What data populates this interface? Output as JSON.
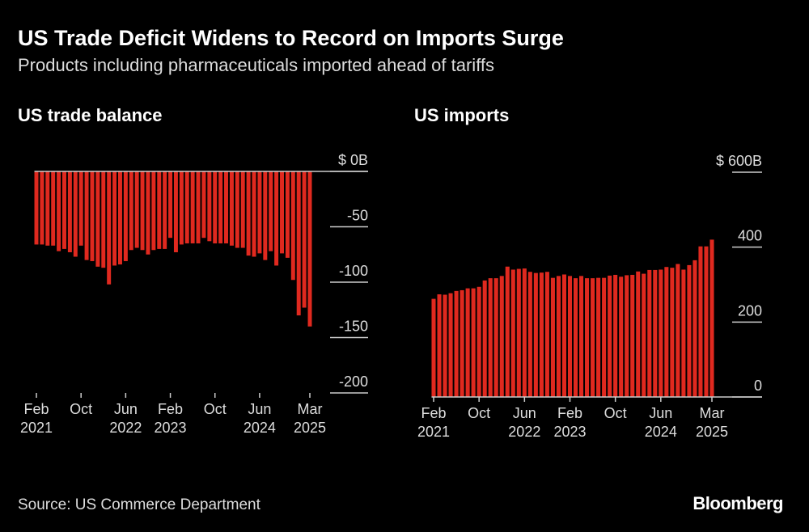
{
  "title": "US Trade Deficit Widens to Record on Imports Surge",
  "subtitle": "Products including pharmaceuticals imported ahead of tariffs",
  "source": "Source: US Commerce Department",
  "logo": "Bloomberg",
  "colors": {
    "bar": "#e0291f",
    "background": "#000000",
    "axis": "#cccccc"
  },
  "chart_data": [
    {
      "type": "bar",
      "title": "US trade balance",
      "unit": "$ billions",
      "x_start": "Feb 2021",
      "x_end": "Mar 2025",
      "frequency": "monthly",
      "ylim": [
        -200,
        0
      ],
      "yticks": [
        {
          "v": 0,
          "label": "$ 0B"
        },
        {
          "v": -50,
          "label": "-50"
        },
        {
          "v": -100,
          "label": "-100"
        },
        {
          "v": -150,
          "label": "-150"
        },
        {
          "v": -200,
          "label": "-200"
        }
      ],
      "xticks": [
        {
          "i": 0,
          "label": [
            "Feb",
            "2021"
          ]
        },
        {
          "i": 8,
          "label": [
            "Oct",
            ""
          ]
        },
        {
          "i": 16,
          "label": [
            "Jun",
            "2022"
          ]
        },
        {
          "i": 24,
          "label": [
            "Feb",
            "2023"
          ]
        },
        {
          "i": 32,
          "label": [
            "Oct",
            ""
          ]
        },
        {
          "i": 40,
          "label": [
            "Jun",
            "2024"
          ]
        },
        {
          "i": 49,
          "label": [
            "Mar",
            "2025"
          ]
        }
      ],
      "values": [
        -66,
        -66,
        -67,
        -67,
        -72,
        -70,
        -73,
        -77,
        -67,
        -80,
        -81,
        -86,
        -87,
        -102,
        -85,
        -84,
        -81,
        -71,
        -69,
        -71,
        -75,
        -71,
        -70,
        -70,
        -60,
        -73,
        -66,
        -65,
        -65,
        -65,
        -60,
        -63,
        -65,
        -65,
        -65,
        -67,
        -69,
        -69,
        -76,
        -77,
        -74,
        -80,
        -72,
        -85,
        -74,
        -78,
        -98,
        -130,
        -123,
        -140
      ]
    },
    {
      "type": "bar",
      "title": "US imports",
      "unit": "$ billions",
      "x_start": "Feb 2021",
      "x_end": "Mar 2025",
      "frequency": "monthly",
      "ylim": [
        0,
        600
      ],
      "yticks": [
        {
          "v": 600,
          "label": "$ 600B"
        },
        {
          "v": 400,
          "label": "400"
        },
        {
          "v": 200,
          "label": "200"
        },
        {
          "v": 0,
          "label": "0"
        }
      ],
      "xticks": [
        {
          "i": 0,
          "label": [
            "Feb",
            "2021"
          ]
        },
        {
          "i": 8,
          "label": [
            "Oct",
            ""
          ]
        },
        {
          "i": 16,
          "label": [
            "Jun",
            "2022"
          ]
        },
        {
          "i": 24,
          "label": [
            "Feb",
            "2023"
          ]
        },
        {
          "i": 32,
          "label": [
            "Oct",
            ""
          ]
        },
        {
          "i": 40,
          "label": [
            "Jun",
            "2024"
          ]
        },
        {
          "i": 49,
          "label": [
            "Mar",
            "2025"
          ]
        }
      ],
      "values": [
        262,
        274,
        273,
        277,
        283,
        285,
        290,
        290,
        294,
        311,
        317,
        317,
        323,
        348,
        340,
        342,
        343,
        334,
        331,
        332,
        334,
        318,
        323,
        327,
        323,
        317,
        323,
        317,
        317,
        318,
        318,
        324,
        326,
        321,
        325,
        326,
        335,
        329,
        339,
        339,
        340,
        347,
        345,
        355,
        340,
        352,
        365,
        402,
        402,
        420
      ]
    }
  ]
}
